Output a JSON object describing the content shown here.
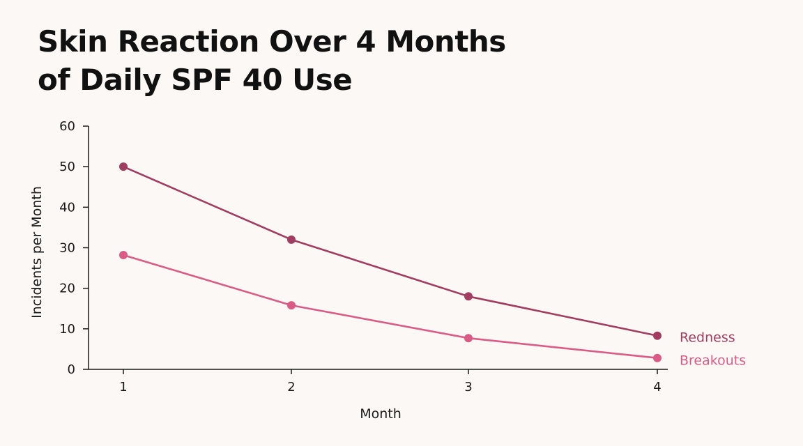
{
  "chart_data": {
    "type": "line",
    "title_lines": [
      "Skin Reaction Over 4 Months",
      "of Daily SPF 40 Use"
    ],
    "xlabel": "Month",
    "ylabel": "Incidents per Month",
    "x": [
      1,
      2,
      3,
      4
    ],
    "x_tick_labels": [
      "1",
      "2",
      "3",
      "4"
    ],
    "ylim": [
      0,
      60
    ],
    "y_ticks": [
      0,
      10,
      20,
      30,
      40,
      50,
      60
    ],
    "grid": false,
    "legend": "direct labels at line ends",
    "series": [
      {
        "name": "Redness",
        "values": [
          50,
          32,
          18,
          8.3
        ],
        "color": "#a23d62"
      },
      {
        "name": "Breakouts",
        "values": [
          28.2,
          15.8,
          7.7,
          2.8
        ],
        "color": "#d95b86"
      }
    ]
  }
}
